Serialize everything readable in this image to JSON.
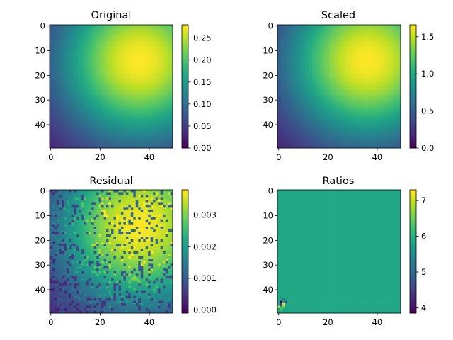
{
  "chart_data": [
    {
      "type": "heatmap",
      "title": "Original",
      "grid_size": [
        50,
        50
      ],
      "xlim": [
        -0.5,
        49.5
      ],
      "ylim": [
        49.5,
        -0.5
      ],
      "xticks": [
        0,
        20,
        40
      ],
      "yticks": [
        0,
        10,
        20,
        30,
        40
      ],
      "x_tick_labels": [
        "0",
        "20",
        "40"
      ],
      "y_tick_labels": [
        "0",
        "10",
        "20",
        "30",
        "40"
      ],
      "colormap": "viridis",
      "colorbar": {
        "min": 0.0,
        "max": 0.28,
        "ticks": [
          0.0,
          0.05,
          0.1,
          0.15,
          0.2,
          0.25
        ],
        "tick_labels": [
          "0.00",
          "0.05",
          "0.10",
          "0.15",
          "0.20",
          "0.25"
        ]
      },
      "field": {
        "kind": "gaussian",
        "peak_col": 36,
        "peak_row": 14,
        "peak_value": 0.28
      }
    },
    {
      "type": "heatmap",
      "title": "Scaled",
      "grid_size": [
        50,
        50
      ],
      "xlim": [
        -0.5,
        49.5
      ],
      "ylim": [
        49.5,
        -0.5
      ],
      "xticks": [
        0,
        20,
        40
      ],
      "yticks": [
        0,
        10,
        20,
        30,
        40
      ],
      "x_tick_labels": [
        "0",
        "20",
        "40"
      ],
      "y_tick_labels": [
        "0",
        "10",
        "20",
        "30",
        "40"
      ],
      "colormap": "viridis",
      "colorbar": {
        "min": 0.0,
        "max": 1.66,
        "ticks": [
          0.0,
          0.5,
          1.0,
          1.5
        ],
        "tick_labels": [
          "0.0",
          "0.5",
          "1.0",
          "1.5"
        ]
      },
      "field": {
        "kind": "gaussian",
        "peak_col": 36,
        "peak_row": 14,
        "peak_value": 1.66
      }
    },
    {
      "type": "heatmap",
      "title": "Residual",
      "grid_size": [
        50,
        50
      ],
      "xlim": [
        -0.5,
        49.5
      ],
      "ylim": [
        49.5,
        -0.5
      ],
      "xticks": [
        0,
        20,
        40
      ],
      "yticks": [
        0,
        10,
        20,
        30,
        40
      ],
      "x_tick_labels": [
        "0",
        "20",
        "40"
      ],
      "y_tick_labels": [
        "0",
        "10",
        "20",
        "30",
        "40"
      ],
      "colormap": "viridis",
      "colorbar": {
        "min": -0.0001,
        "max": 0.0038,
        "ticks": [
          0.0,
          0.001,
          0.002,
          0.003
        ],
        "tick_labels": [
          "0.000",
          "0.001",
          "0.002",
          "0.003"
        ]
      },
      "field": {
        "kind": "gaussian_noisy",
        "peak_col": 36,
        "peak_row": 14,
        "peak_value": 0.0038
      }
    },
    {
      "type": "heatmap",
      "title": "Ratios",
      "grid_size": [
        50,
        50
      ],
      "xlim": [
        -0.5,
        49.5
      ],
      "ylim": [
        49.5,
        -0.5
      ],
      "xticks": [
        0,
        20,
        40
      ],
      "yticks": [
        0,
        10,
        20,
        30,
        40
      ],
      "x_tick_labels": [
        "0",
        "20",
        "40"
      ],
      "y_tick_labels": [
        "0",
        "10",
        "20",
        "30",
        "40"
      ],
      "colormap": "viridis",
      "colorbar": {
        "min": 3.85,
        "max": 7.3,
        "ticks": [
          4,
          5,
          6,
          7
        ],
        "tick_labels": [
          "4",
          "5",
          "6",
          "7"
        ]
      },
      "field": {
        "kind": "constant",
        "value": 5.9,
        "outliers": [
          [
            45,
            1,
            3.9
          ],
          [
            46,
            1,
            4.3
          ],
          [
            46,
            2,
            7.2
          ],
          [
            47,
            2,
            6.5
          ],
          [
            45,
            3,
            4.6
          ],
          [
            44,
            2,
            5.2
          ],
          [
            47,
            0,
            6.8
          ],
          [
            48,
            1,
            6.4
          ],
          [
            43,
            1,
            5.6
          ]
        ]
      }
    }
  ]
}
